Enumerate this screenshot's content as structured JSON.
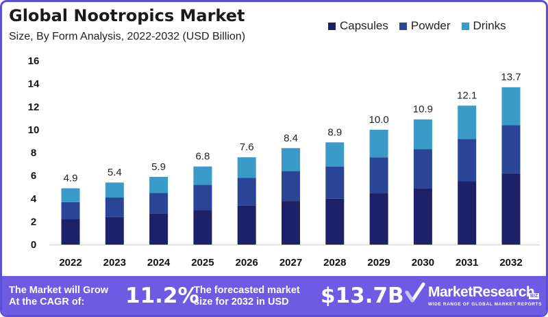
{
  "header": {
    "title": "Global Nootropics Market",
    "subtitle": "Size, By Form Analysis, 2022-2032 (USD Billion)"
  },
  "colors": {
    "capsules": "#1d2168",
    "powder": "#2b4596",
    "drinks": "#3a9ac8",
    "accent": "#6f5be3"
  },
  "chart_data": {
    "type": "bar",
    "stacked": true,
    "categories": [
      "2022",
      "2023",
      "2024",
      "2025",
      "2026",
      "2027",
      "2028",
      "2029",
      "2030",
      "2031",
      "2032"
    ],
    "series": [
      {
        "name": "Capsules",
        "values": [
          2.2,
          2.4,
          2.7,
          3.0,
          3.4,
          3.8,
          4.0,
          4.5,
          4.9,
          5.5,
          6.2
        ]
      },
      {
        "name": "Powder",
        "values": [
          1.5,
          1.7,
          1.8,
          2.2,
          2.4,
          2.6,
          2.8,
          3.1,
          3.4,
          3.7,
          4.2
        ]
      },
      {
        "name": "Drinks",
        "values": [
          1.2,
          1.3,
          1.4,
          1.6,
          1.8,
          2.0,
          2.1,
          2.4,
          2.6,
          2.9,
          3.3
        ]
      }
    ],
    "totals": [
      "4.9",
      "5.4",
      "5.9",
      "6.8",
      "7.6",
      "8.4",
      "8.9",
      "10.0",
      "10.9",
      "12.1",
      "13.7"
    ],
    "y_ticks": [
      "0",
      "2",
      "4",
      "6",
      "8",
      "10",
      "12",
      "14",
      "16"
    ],
    "ylim": [
      0,
      16
    ],
    "grid": false,
    "legend_position": "top-right"
  },
  "footer": {
    "cagr_label_line1": "The Market will Grow",
    "cagr_label_line2": "At the CAGR of:",
    "cagr_value": "11.2%",
    "forecast_label_line1": "The forecasted market",
    "forecast_label_line2": "size for 2032 in USD",
    "forecast_value": "$13.7B",
    "brand_name": "MarketResearch",
    "brand_badge": "BIZ",
    "brand_tagline": "WIDE RANGE OF GLOBAL MARKET REPORTS"
  }
}
